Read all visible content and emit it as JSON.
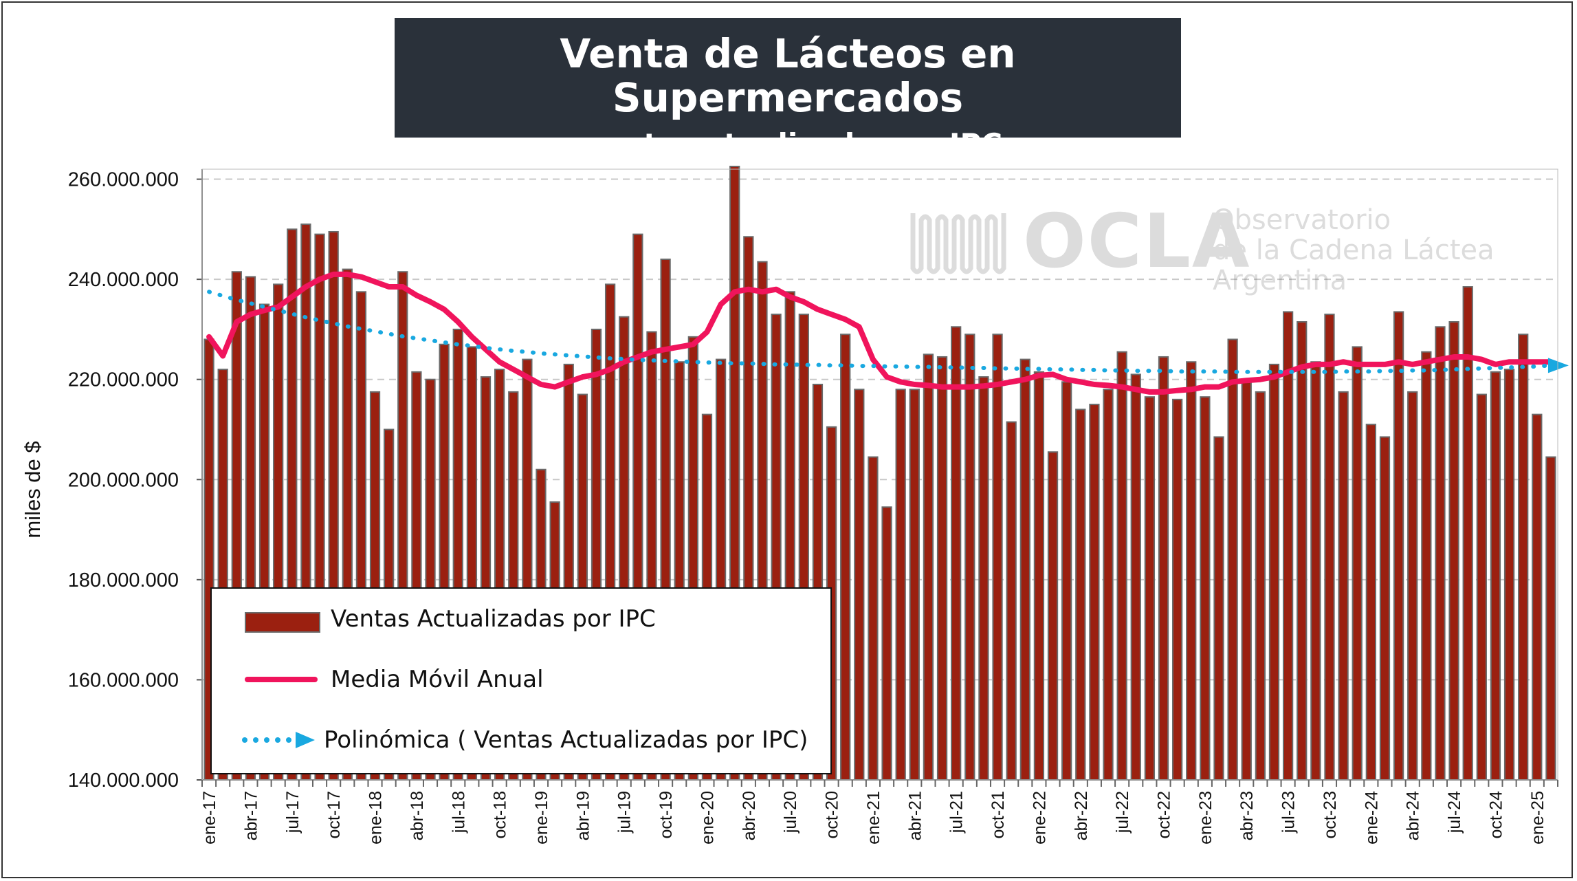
{
  "title": "Venta de Lácteos en Supermercados",
  "subtitle": "- monto actualizado por IPC -",
  "watermark": {
    "logo_text": "OCLA",
    "line1": "Observatorio",
    "line2": "de la Cadena Láctea",
    "line3": "Argentina"
  },
  "colors": {
    "bars": "#9b2010",
    "bar_edge": "#6a6a6a",
    "moving_average": "#f0145c",
    "trend": "#19a8e0",
    "title_bg": "#2a313a"
  },
  "legend": {
    "items": [
      {
        "label": "Ventas Actualizadas por IPC",
        "kind": "bar"
      },
      {
        "label": "Media Móvil Anual",
        "kind": "line"
      },
      {
        "label": "Polinómica ( Ventas Actualizadas por IPC)",
        "kind": "dotted"
      }
    ]
  },
  "chart_data": {
    "type": "bar",
    "ylabel": "miles de $",
    "xlabel": "",
    "ylim": [
      140000000,
      262000000
    ],
    "ytick_values": [
      140000000,
      160000000,
      180000000,
      200000000,
      220000000,
      240000000,
      260000000
    ],
    "ytick_labels": [
      "140.000.000",
      "160.000.000",
      "180.000.000",
      "200.000.000",
      "220.000.000",
      "240.000.000",
      "260.000.000"
    ],
    "grid": "horizontal dashed",
    "legend_position": "bottom-left",
    "x_tick_labels": [
      "ene-17",
      "abr-17",
      "jul-17",
      "oct-17",
      "ene-18",
      "abr-18",
      "jul-18",
      "oct-18",
      "ene-19",
      "abr-19",
      "jul-19",
      "oct-19",
      "ene-20",
      "abr-20",
      "jul-20",
      "oct-20",
      "ene-21",
      "abr-21",
      "jul-21",
      "oct-21",
      "ene-22",
      "abr-22",
      "jul-22",
      "oct-22",
      "ene-23",
      "abr-23",
      "jul-23",
      "oct-23",
      "ene-24",
      "abr-24",
      "jul-24",
      "oct-24",
      "ene-25"
    ],
    "x_tick_every": 3,
    "series": [
      {
        "name": "Ventas Actualizadas por IPC",
        "type": "bar",
        "values": [
          228000000,
          222000000,
          241500000,
          240500000,
          235000000,
          239000000,
          250000000,
          251000000,
          249000000,
          249500000,
          242000000,
          237500000,
          217500000,
          210000000,
          241500000,
          221500000,
          220000000,
          227000000,
          230000000,
          226500000,
          220500000,
          222000000,
          217500000,
          224000000,
          202000000,
          195500000,
          223000000,
          217000000,
          230000000,
          239000000,
          232500000,
          249000000,
          229500000,
          244000000,
          223500000,
          228500000,
          213000000,
          224000000,
          263000000,
          248500000,
          243500000,
          233000000,
          237500000,
          233000000,
          219000000,
          210500000,
          229000000,
          218000000,
          204500000,
          194500000,
          218000000,
          218000000,
          225000000,
          224500000,
          230500000,
          229000000,
          220500000,
          229000000,
          211500000,
          224000000,
          221500000,
          205500000,
          219500000,
          214000000,
          215000000,
          218000000,
          225500000,
          221000000,
          216500000,
          224500000,
          216000000,
          223500000,
          216500000,
          208500000,
          228000000,
          219500000,
          217500000,
          223000000,
          233500000,
          231500000,
          223500000,
          233000000,
          217500000,
          226500000,
          211000000,
          208500000,
          233500000,
          217500000,
          225500000,
          230500000,
          231500000,
          238500000,
          217000000,
          221500000,
          222000000,
          229000000,
          213000000,
          204500000
        ]
      },
      {
        "name": "Media Móvil Anual",
        "type": "line",
        "values": [
          228500000,
          224700000,
          231500000,
          233000000,
          233800000,
          234500000,
          236500000,
          238500000,
          240000000,
          241000000,
          241000000,
          240500000,
          239500000,
          238500000,
          238500000,
          236800000,
          235500000,
          234000000,
          231500000,
          228500000,
          226000000,
          223500000,
          222000000,
          220500000,
          219000000,
          218500000,
          219500000,
          220500000,
          221000000,
          222000000,
          223500000,
          224500000,
          225500000,
          226000000,
          226500000,
          227000000,
          229500000,
          235000000,
          237500000,
          238000000,
          237500000,
          238000000,
          236500000,
          235500000,
          234000000,
          233000000,
          232000000,
          230500000,
          224000000,
          220500000,
          219500000,
          219000000,
          218800000,
          218500000,
          218500000,
          218500000,
          218700000,
          219000000,
          219500000,
          220000000,
          220800000,
          221000000,
          220000000,
          219500000,
          219000000,
          218800000,
          218500000,
          218000000,
          217500000,
          217500000,
          217800000,
          218000000,
          218500000,
          218500000,
          219500000,
          219800000,
          220000000,
          220500000,
          221500000,
          222500000,
          223000000,
          223000000,
          223500000,
          223000000,
          223000000,
          223000000,
          223500000,
          223000000,
          223500000,
          224000000,
          224500000,
          224500000,
          224000000,
          223000000,
          223500000,
          223500000,
          223500000,
          223500000
        ]
      },
      {
        "name": "Polinómica ( Ventas Actualizadas por IPC)",
        "type": "trend",
        "values": [
          237500000,
          236700000,
          235900000,
          235200000,
          234500000,
          233800000,
          233100000,
          232400000,
          231800000,
          231200000,
          230600000,
          230100000,
          229600000,
          229100000,
          228600000,
          228200000,
          227800000,
          227400000,
          227000000,
          226700000,
          226300000,
          226000000,
          225700000,
          225500000,
          225200000,
          225000000,
          224800000,
          224600000,
          224400000,
          224200000,
          224100000,
          223900000,
          223800000,
          223700000,
          223600000,
          223500000,
          223400000,
          223300000,
          223200000,
          223200000,
          223100000,
          223000000,
          223000000,
          222900000,
          222900000,
          222800000,
          222800000,
          222700000,
          222700000,
          222600000,
          222600000,
          222500000,
          222500000,
          222400000,
          222400000,
          222300000,
          222300000,
          222200000,
          222200000,
          222100000,
          222100000,
          222000000,
          222000000,
          221900000,
          221900000,
          221800000,
          221800000,
          221700000,
          221700000,
          221700000,
          221600000,
          221600000,
          221600000,
          221600000,
          221500000,
          221500000,
          221500000,
          221500000,
          221500000,
          221500000,
          221500000,
          221500000,
          221600000,
          221600000,
          221600000,
          221700000,
          221700000,
          221800000,
          221800000,
          221900000,
          222000000,
          222100000,
          222200000,
          222300000,
          222400000,
          222500000,
          222600000,
          222800000
        ]
      }
    ]
  }
}
